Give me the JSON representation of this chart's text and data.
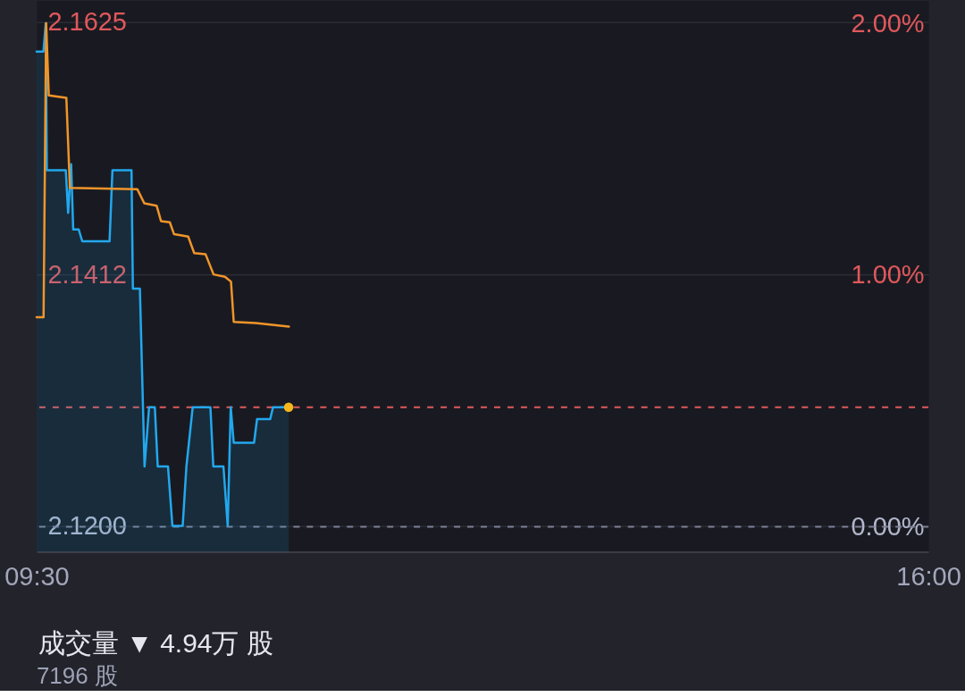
{
  "chart_data": {
    "type": "line",
    "xlim": [
      9.5,
      16
    ],
    "xticks": [
      {
        "value": 9.5,
        "label": "09:30"
      },
      {
        "value": 16,
        "label": "16:00"
      }
    ],
    "ylim": [
      2.1178,
      2.1643
    ],
    "yticks": [
      {
        "value": 2.12,
        "label": "2.1200"
      },
      2.1412,
      2.1625
    ],
    "y2lim": [
      -0.1,
      2.09
    ],
    "y2ticks": [
      {
        "value": 0,
        "label": "0.00%"
      },
      {
        "value": 1,
        "label": "1.00%"
      },
      {
        "value": 2,
        "label": "2.00%"
      }
    ],
    "grid": "y",
    "series": [
      {
        "type": "area",
        "color": "#22a8ee",
        "x": [
          9.5,
          9.55,
          9.567,
          9.575,
          9.713,
          9.73,
          9.752,
          9.767,
          9.807,
          9.833,
          10.032,
          10.053,
          10.192,
          10.202,
          10.253,
          10.287,
          10.32,
          10.362,
          10.383,
          10.458,
          10.49,
          10.565,
          10.592,
          10.638,
          10.767,
          10.788,
          10.862,
          10.893,
          10.915,
          10.937,
          11.085,
          11.107,
          11.203,
          11.223,
          11.337
        ],
        "values": [
          2.16,
          2.16,
          2.1624,
          2.15,
          2.15,
          2.1464,
          2.1505,
          2.145,
          2.145,
          2.144,
          2.144,
          2.15,
          2.15,
          2.14,
          2.14,
          2.125,
          2.13,
          2.13,
          2.125,
          2.125,
          2.12,
          2.12,
          2.125,
          2.13,
          2.13,
          2.125,
          2.125,
          2.12,
          2.13,
          2.127,
          2.127,
          2.129,
          2.129,
          2.13,
          2.13
        ]
      },
      {
        "color": "#f0952a",
        "x": [
          9.5,
          9.551,
          9.57,
          9.589,
          9.717,
          9.743,
          10.234,
          10.285,
          10.375,
          10.407,
          10.471,
          10.502,
          10.605,
          10.649,
          10.732,
          10.79,
          10.873,
          10.917,
          10.937,
          11.096,
          11.339
        ],
        "values": [
          2.1376,
          2.1376,
          2.1624,
          2.1563,
          2.1561,
          2.1485,
          2.1484,
          2.1472,
          2.147,
          2.1457,
          2.1456,
          2.1446,
          2.1444,
          2.143,
          2.1429,
          2.1412,
          2.141,
          2.1406,
          2.1372,
          2.1371,
          2.1368
        ]
      },
      {
        "type": "scatter",
        "color": "#f5b71b",
        "marker": "circle",
        "x": [
          11.337
        ],
        "values": [
          2.13
        ]
      }
    ],
    "ref_lines": [
      {
        "axis": "y",
        "value": 2.13,
        "color": "#df5a5c",
        "line_style": "dashed"
      },
      {
        "axis": "y2",
        "value": 0,
        "color": "#7c8093",
        "line_style": "dashed"
      }
    ],
    "annotations": [
      "成交量 ▼ 4.94万 股",
      "7196 股"
    ]
  }
}
